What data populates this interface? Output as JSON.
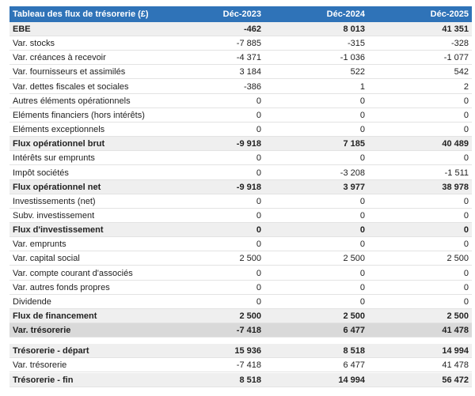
{
  "table": {
    "header": [
      "Tableau des flux de trésorerie (£)",
      "Déc-2023",
      "Déc-2024",
      "Déc-2025"
    ],
    "rows": [
      [
        "EBE",
        "-462",
        "8 013",
        "41 351"
      ],
      [
        "Var. stocks",
        "-7 885",
        "-315",
        "-328"
      ],
      [
        "Var. créances à recevoir",
        "-4 371",
        "-1 036",
        "-1 077"
      ],
      [
        "Var. fournisseurs et assimilés",
        "3 184",
        "522",
        "542"
      ],
      [
        "Var. dettes fiscales et sociales",
        "-386",
        "1",
        "2"
      ],
      [
        "Autres éléments opérationnels",
        "0",
        "0",
        "0"
      ],
      [
        "Eléments financiers (hors intérêts)",
        "0",
        "0",
        "0"
      ],
      [
        "Eléments exceptionnels",
        "0",
        "0",
        "0"
      ],
      [
        "Flux opérationnel brut",
        "-9 918",
        "7 185",
        "40 489"
      ],
      [
        "Intérêts sur emprunts",
        "0",
        "0",
        "0"
      ],
      [
        "Impôt sociétés",
        "0",
        "-3 208",
        "-1 511"
      ],
      [
        "Flux opérationnel net",
        "-9 918",
        "3 977",
        "38 978"
      ],
      [
        "Investissements (net)",
        "0",
        "0",
        "0"
      ],
      [
        "Subv. investissement",
        "0",
        "0",
        "0"
      ],
      [
        "Flux d'investissement",
        "0",
        "0",
        "0"
      ],
      [
        "Var. emprunts",
        "0",
        "0",
        "0"
      ],
      [
        "Var. capital social",
        "2 500",
        "2 500",
        "2 500"
      ],
      [
        "Var. compte courant d'associés",
        "0",
        "0",
        "0"
      ],
      [
        "Var. autres fonds propres",
        "0",
        "0",
        "0"
      ],
      [
        "Dividende",
        "0",
        "0",
        "0"
      ],
      [
        "Flux de financement",
        "2 500",
        "2 500",
        "2 500"
      ],
      [
        "Var. trésorerie",
        "-7 418",
        "6 477",
        "41 478"
      ],
      [
        "Trésorerie - départ",
        "15 936",
        "8 518",
        "14 994"
      ],
      [
        "Var. trésorerie",
        "-7 418",
        "6 477",
        "41 478"
      ],
      [
        "Trésorerie - fin",
        "8 518",
        "14 994",
        "56 472"
      ]
    ]
  }
}
